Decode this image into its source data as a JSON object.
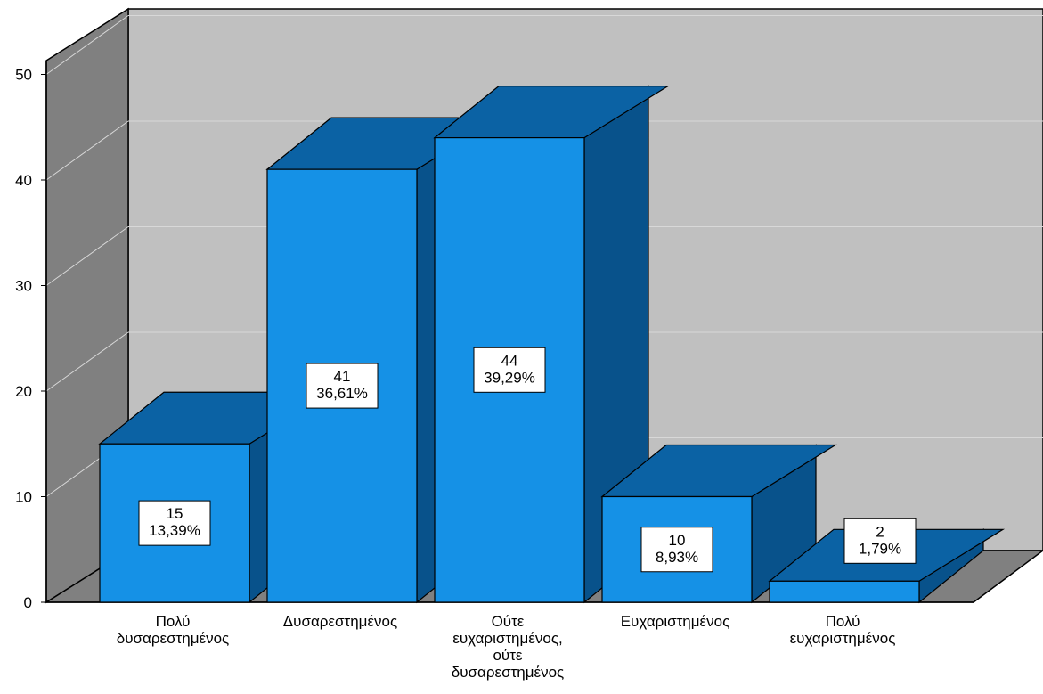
{
  "chart_data": {
    "type": "bar",
    "style": "3d",
    "title": "",
    "xlabel": "",
    "ylabel": "",
    "ylim": [
      0,
      50
    ],
    "yticks": [
      0,
      10,
      20,
      30,
      40,
      50
    ],
    "grid": true,
    "legend": "none",
    "categories": [
      [
        "Πολύ",
        "δυσαρεστημένος"
      ],
      [
        "Δυσαρεστημένος"
      ],
      [
        "Ούτε",
        "ευχαριστημένος,",
        "ούτε",
        "δυσαρεστημένος"
      ],
      [
        "Ευχαριστημένος"
      ],
      [
        "Πολύ",
        "ευχαριστημένος"
      ]
    ],
    "values": [
      15,
      41,
      44,
      10,
      2
    ],
    "data_labels": [
      [
        "15",
        "13,39%"
      ],
      [
        "41",
        "36,61%"
      ],
      [
        "44",
        "39,29%"
      ],
      [
        "10",
        "8,93%"
      ],
      [
        "2",
        "1,79%"
      ]
    ],
    "colors": {
      "bar_front": "#1591E6",
      "bar_top": "#0B62A4",
      "bar_side": "#08528B",
      "back_wall": "#C0C0C0",
      "side_wall": "#808080",
      "floor": "#808080",
      "gridline": "#D8D8D8"
    }
  }
}
